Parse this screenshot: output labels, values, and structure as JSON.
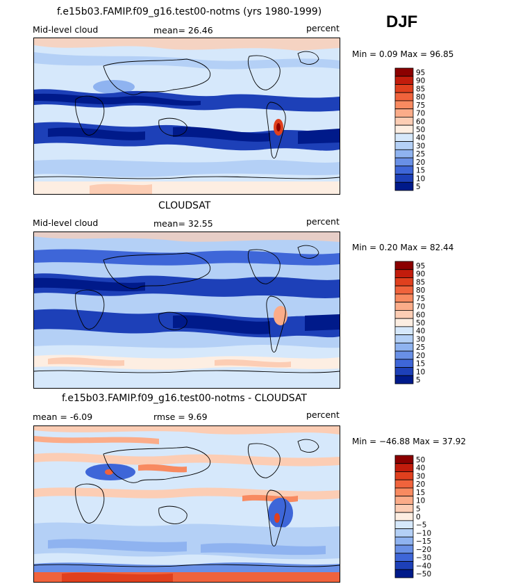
{
  "season": "DJF",
  "panels": [
    {
      "title": "f.e15b03.FAMIP.f09_g16.test00-notms (yrs 1980-1999)",
      "left_label": "Mid-level cloud",
      "stat1": "mean=  26.46",
      "stat2": "",
      "units": "percent",
      "minmax": "Min =    0.09  Max =   96.85"
    },
    {
      "title": "CLOUDSAT",
      "left_label": "Mid-level cloud",
      "stat1": "mean=  32.55",
      "stat2": "",
      "units": "percent",
      "minmax": "Min =    0.20  Max =   82.44"
    },
    {
      "title": "f.e15b03.FAMIP.f09_g16.test00-notms - CLOUDSAT",
      "left_label": "mean =   -6.09",
      "stat1": "rmse =    9.69",
      "stat2": "",
      "units": "percent",
      "minmax": "Min = −46.88  Max =   37.92"
    }
  ],
  "chart_data": [
    {
      "type": "heatmap",
      "title": "f.e15b03.FAMIP.f09_g16.test00-notms (yrs 1980-1999)",
      "variable": "Mid-level cloud",
      "units": "percent",
      "mean": 26.46,
      "min": 0.09,
      "max": 96.85,
      "colorbar_levels": [
        "95",
        "90",
        "85",
        "80",
        "75",
        "70",
        "60",
        "50",
        "40",
        "30",
        "25",
        "20",
        "15",
        "10",
        "5"
      ],
      "colorbar_colors": [
        "#8b0000",
        "#c21c0c",
        "#e0401e",
        "#f0633c",
        "#f88a60",
        "#fbac89",
        "#fccdb4",
        "#fdeee2",
        "#d6e8fb",
        "#b4d0f6",
        "#8fb3f0",
        "#6990e6",
        "#3e66d8",
        "#1d40b8",
        "#001a8a"
      ]
    },
    {
      "type": "heatmap",
      "title": "CLOUDSAT",
      "variable": "Mid-level cloud",
      "units": "percent",
      "mean": 32.55,
      "min": 0.2,
      "max": 82.44,
      "colorbar_levels": [
        "95",
        "90",
        "85",
        "80",
        "75",
        "70",
        "60",
        "50",
        "40",
        "30",
        "25",
        "20",
        "15",
        "10",
        "5"
      ],
      "colorbar_colors": [
        "#8b0000",
        "#c21c0c",
        "#e0401e",
        "#f0633c",
        "#f88a60",
        "#fbac89",
        "#fccdb4",
        "#fdeee2",
        "#d6e8fb",
        "#b4d0f6",
        "#8fb3f0",
        "#6990e6",
        "#3e66d8",
        "#1d40b8",
        "#001a8a"
      ]
    },
    {
      "type": "heatmap",
      "title": "f.e15b03.FAMIP.f09_g16.test00-notms - CLOUDSAT",
      "units": "percent",
      "mean": -6.09,
      "rmse": 9.69,
      "min": -46.88,
      "max": 37.92,
      "colorbar_levels": [
        "50",
        "40",
        "30",
        "20",
        "15",
        "10",
        "5",
        "0",
        "−5",
        "−10",
        "−15",
        "−20",
        "−30",
        "−40",
        "−50"
      ],
      "colorbar_colors": [
        "#8b0000",
        "#c21c0c",
        "#e0401e",
        "#f0633c",
        "#f88a60",
        "#fbac89",
        "#fccdb4",
        "#fdeee2",
        "#d6e8fb",
        "#b4d0f6",
        "#8fb3f0",
        "#6990e6",
        "#3e66d8",
        "#1d40b8",
        "#001a8a"
      ]
    }
  ],
  "colors": {
    "dark_blue": "#001a8a",
    "blue": "#3e66d8",
    "light_blue": "#b4d0f6",
    "pale_blue": "#d6e8fb",
    "pale_orange": "#fccdb4",
    "orange": "#f0633c",
    "dark_red": "#8b0000",
    "coast": "#000000"
  }
}
